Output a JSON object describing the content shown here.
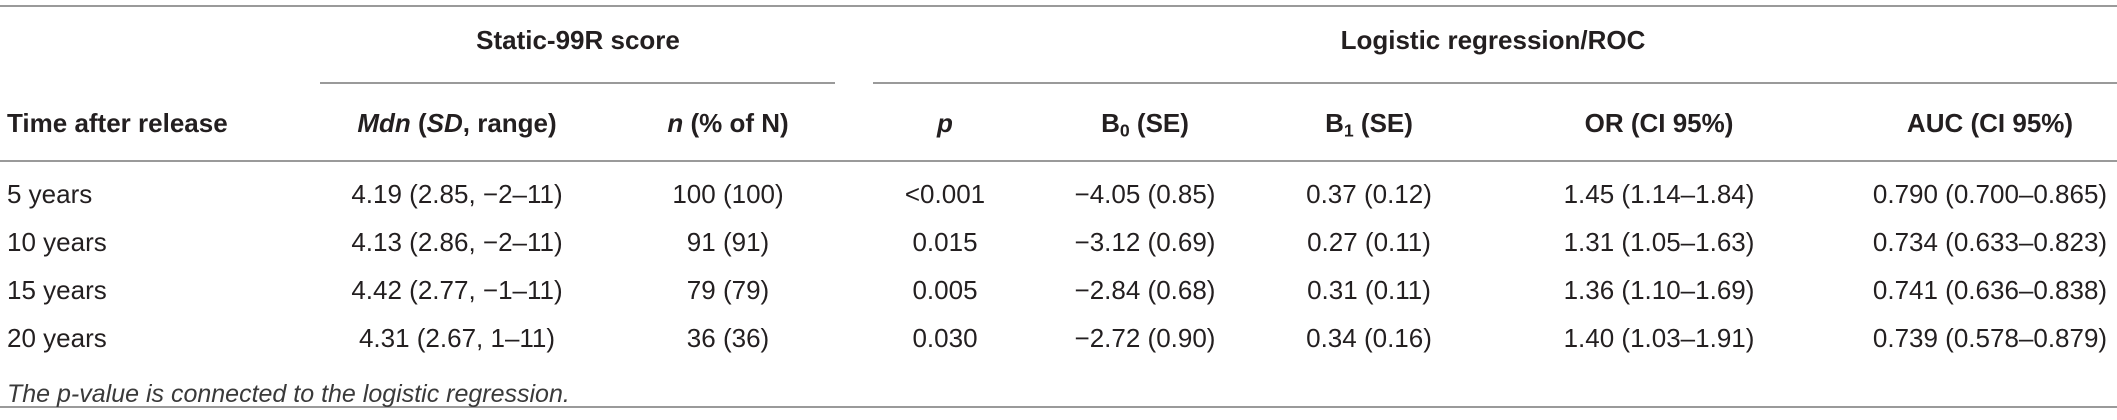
{
  "table": {
    "group_headers": {
      "static": "Static-99R score",
      "logistic": "Logistic regression/ROC"
    },
    "columns": {
      "time": "Time after release",
      "mdn_prefix": "Mdn",
      "mdn_open": " (",
      "mdn_sd": "SD",
      "mdn_suffix": ", range)",
      "n_prefix": "n",
      "n_suffix": " (% of N)",
      "p": "p",
      "b0_main": "B",
      "b0_sub": "0",
      "b0_tail": " (SE)",
      "b1_main": "B",
      "b1_sub": "1",
      "b1_tail": " (SE)",
      "or": "OR (CI 95%)",
      "auc": "AUC (CI 95%)"
    },
    "rows": [
      {
        "time": "5 years",
        "mdn": "4.19 (2.85, −2–11)",
        "n": "100 (100)",
        "p": "<0.001",
        "b0": "−4.05 (0.85)",
        "b1": "0.37 (0.12)",
        "or": "1.45 (1.14–1.84)",
        "auc": "0.790 (0.700–0.865)"
      },
      {
        "time": "10 years",
        "mdn": "4.13 (2.86, −2–11)",
        "n": "91 (91)",
        "p": "0.015",
        "b0": "−3.12 (0.69)",
        "b1": "0.27 (0.11)",
        "or": "1.31 (1.05–1.63)",
        "auc": "0.734 (0.633–0.823)"
      },
      {
        "time": "15 years",
        "mdn": "4.42 (2.77, −1–11)",
        "n": "79 (79)",
        "p": "0.005",
        "b0": "−2.84 (0.68)",
        "b1": "0.31 (0.11)",
        "or": "1.36 (1.10–1.69)",
        "auc": "0.741 (0.636–0.838)"
      },
      {
        "time": "20 years",
        "mdn": "4.31 (2.67, 1–11)",
        "n": "36 (36)",
        "p": "0.030",
        "b0": "−2.72 (0.90)",
        "b1": "0.34 (0.16)",
        "or": "1.40 (1.03–1.91)",
        "auc": "0.739 (0.578–0.879)"
      }
    ],
    "footnote": "The p-value is connected to the logistic regression."
  }
}
